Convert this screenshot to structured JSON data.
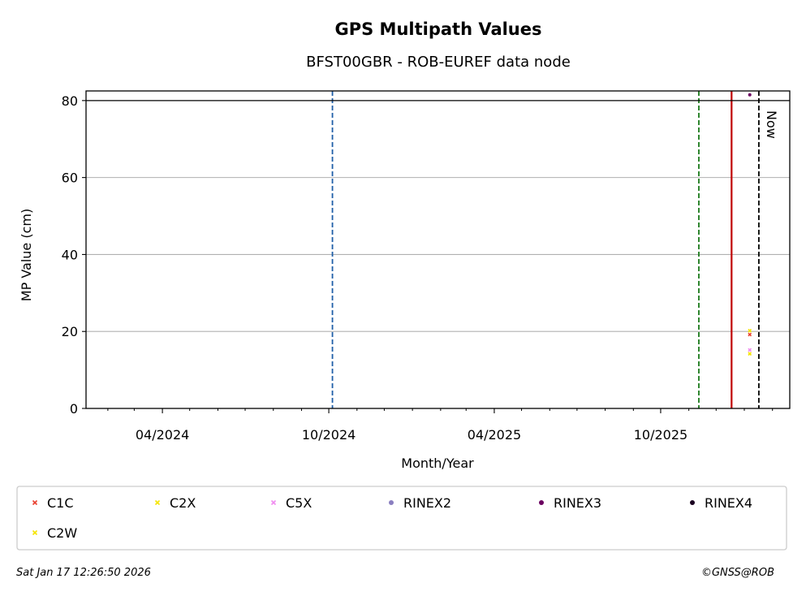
{
  "chart_data": {
    "type": "scatter",
    "title": "GPS Multipath Values",
    "subtitle": "BFST00GBR - ROB-EUREF data node",
    "xlabel": "Month/Year",
    "ylabel": "MP Value (cm)",
    "xlim": [
      "2024-01-08",
      "2026-02-20"
    ],
    "ylim": [
      0,
      82.5
    ],
    "xticks": [
      {
        "date": "2024-04-01",
        "label": "04/2024"
      },
      {
        "date": "2024-10-01",
        "label": "10/2024"
      },
      {
        "date": "2025-04-01",
        "label": "04/2025"
      },
      {
        "date": "2025-10-01",
        "label": "10/2025"
      }
    ],
    "minor_xticks": [
      "2024-01-01",
      "2024-02-01",
      "2024-03-01",
      "2024-05-01",
      "2024-06-01",
      "2024-07-01",
      "2024-08-01",
      "2024-09-01",
      "2024-11-01",
      "2024-12-01",
      "2025-01-01",
      "2025-02-01",
      "2025-03-01",
      "2025-05-01",
      "2025-06-01",
      "2025-07-01",
      "2025-08-01",
      "2025-09-01",
      "2025-11-01",
      "2025-12-01",
      "2026-01-01",
      "2026-02-01"
    ],
    "yticks": [
      0,
      20,
      40,
      60,
      80
    ],
    "grid": "y",
    "threshold_line": {
      "y": 80,
      "color": "#000000"
    },
    "vertical_lines": [
      {
        "date": "2024-10-05",
        "color": "#1f5fa8",
        "style": "dashed"
      },
      {
        "date": "2025-11-12",
        "color": "#1a7a1a",
        "style": "dashed"
      },
      {
        "date": "2025-12-18",
        "color": "#c00000",
        "style": "solid"
      },
      {
        "date": "2026-01-17",
        "color": "#000000",
        "style": "dashed",
        "label": "Now"
      }
    ],
    "series": [
      {
        "name": "C1C",
        "marker": "x",
        "color": "#e8402f",
        "points": [
          {
            "x": "2026-01-07",
            "y": 19.2
          }
        ]
      },
      {
        "name": "C2X",
        "marker": "x",
        "color": "#f5e400",
        "points": [
          {
            "x": "2026-01-07",
            "y": 20.2
          }
        ]
      },
      {
        "name": "C5X",
        "marker": "x",
        "color": "#f08cf0",
        "points": [
          {
            "x": "2026-01-07",
            "y": 15.2
          }
        ]
      },
      {
        "name": "RINEX2",
        "marker": "o",
        "color": "#8a7ec0",
        "points": []
      },
      {
        "name": "RINEX3",
        "marker": "o",
        "color": "#6b0060",
        "points": [
          {
            "x": "2026-01-07",
            "y": 81.5
          }
        ]
      },
      {
        "name": "RINEX4",
        "marker": "o",
        "color": "#1a0020",
        "points": []
      },
      {
        "name": "C2W",
        "marker": "x",
        "color": "#f5e400",
        "points": [
          {
            "x": "2026-01-07",
            "y": 14.2
          }
        ]
      }
    ],
    "legend_position": "bottom"
  },
  "footer": {
    "timestamp": "Sat Jan 17 12:26:50 2026",
    "credit": "©GNSS@ROB"
  }
}
